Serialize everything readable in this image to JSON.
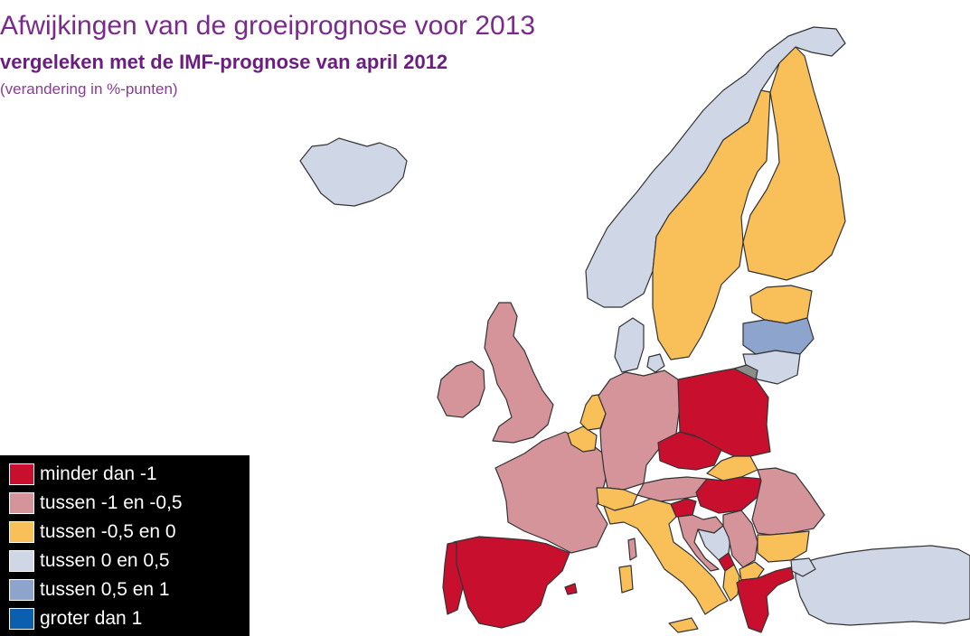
{
  "title": "Afwijkingen van de groeiprognose voor 2013",
  "subtitle": "vergeleken met de IMF-prognose van april 2012",
  "note": "(verandering in %-punten)",
  "colors": {
    "red": "#c8102e",
    "pink": "#d4949a",
    "orange": "#f9c05a",
    "lightblue": "#cfd6e6",
    "midblue": "#8da4cd",
    "blue": "#0b5fae",
    "grey": "#8c8c8c",
    "border": "#333333"
  },
  "legend": [
    {
      "label": "minder dan -1",
      "color": "#c8102e"
    },
    {
      "label": "tussen -1 en -0,5",
      "color": "#d4949a"
    },
    {
      "label": "tussen -0,5 en 0",
      "color": "#f9c05a"
    },
    {
      "label": "tussen 0 en 0,5",
      "color": "#cfd6e6"
    },
    {
      "label": "tussen 0,5 en 1",
      "color": "#8da4cd"
    },
    {
      "label": "groter dan 1",
      "color": "#0b5fae"
    }
  ],
  "regions": {
    "minder dan -1": [
      "Spanje",
      "Portugal",
      "Polen",
      "Tsjechië",
      "Hongarije",
      "Slovenië",
      "Griekenland",
      "Montenegro"
    ],
    "tussen -1 en -0,5": [
      "Verenigd Koninkrijk",
      "Ierland",
      "Frankrijk",
      "Duitsland",
      "Oostenrijk",
      "Roemenië",
      "Servië",
      "Kroatië"
    ],
    "tussen -0,5 en 0": [
      "Zweden",
      "Finland",
      "Nederland",
      "België",
      "Zwitserland",
      "Italië",
      "Slowakije",
      "Bulgarije",
      "Estland",
      "Macedonië",
      "Albanië",
      "Bosnië-Herzegovina"
    ],
    "tussen 0 en 0,5": [
      "Noorwegen",
      "IJsland",
      "Denemarken",
      "Litouwen",
      "Turkije"
    ],
    "tussen 0,5 en 1": [
      "Letland"
    ],
    "geen gegevens": [
      "Kaliningrad"
    ]
  }
}
